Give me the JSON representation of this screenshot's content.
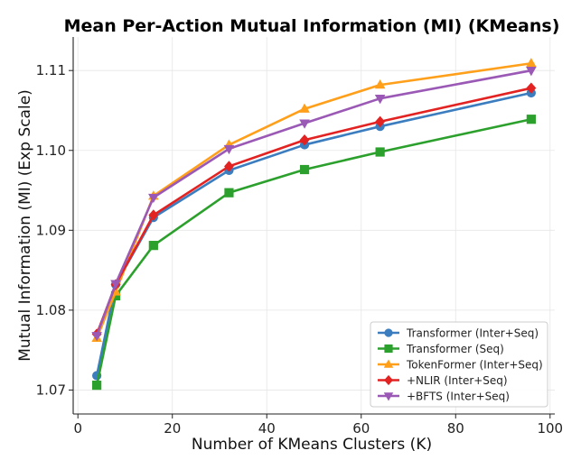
{
  "chart_data": {
    "type": "line",
    "title": "Mean Per-Action Mutual Information (MI) (KMeans)",
    "xlabel": "Number of KMeans Clusters (K)",
    "ylabel": "Mutual Information (MI) (Exp Scale)",
    "x": [
      4,
      8,
      16,
      32,
      48,
      64,
      96
    ],
    "xlim": [
      -1,
      101
    ],
    "ylim": [
      1.067,
      1.1142
    ],
    "xticks": [
      0,
      20,
      40,
      60,
      80,
      100
    ],
    "yticks": [
      1.07,
      1.08,
      1.09,
      1.1,
      1.11
    ],
    "xtick_labels": [
      "0",
      "20",
      "40",
      "60",
      "80",
      "100"
    ],
    "ytick_labels": [
      "1.07",
      "1.08",
      "1.09",
      "1.10",
      "1.11"
    ],
    "grid": true,
    "legend_position": "bottom-right",
    "series": [
      {
        "name": "Transformer (Inter+Seq)",
        "color": "#3b7dbf",
        "marker": "circle",
        "values": [
          1.0718,
          1.0832,
          1.0916,
          1.0975,
          1.1007,
          1.103,
          1.1072
        ]
      },
      {
        "name": "Transformer (Seq)",
        "color": "#2ca02c",
        "marker": "square",
        "values": [
          1.0706,
          1.0818,
          1.0881,
          1.0947,
          1.0976,
          1.0998,
          1.1039
        ]
      },
      {
        "name": "TokenFormer (Inter+Seq)",
        "color": "#ff9f1a",
        "marker": "triangle-up",
        "values": [
          1.0765,
          1.0823,
          1.0943,
          1.1007,
          1.1052,
          1.1082,
          1.1109
        ]
      },
      {
        "name": "+NLIR (Inter+Seq)",
        "color": "#e32222",
        "marker": "diamond",
        "values": [
          1.077,
          1.0832,
          1.0919,
          1.098,
          1.1013,
          1.1036,
          1.1078
        ]
      },
      {
        "name": "+BFTS (Inter+Seq)",
        "color": "#9b59b6",
        "marker": "triangle-down",
        "values": [
          1.0768,
          1.0833,
          1.0941,
          1.1002,
          1.1034,
          1.1065,
          1.11
        ]
      }
    ]
  }
}
